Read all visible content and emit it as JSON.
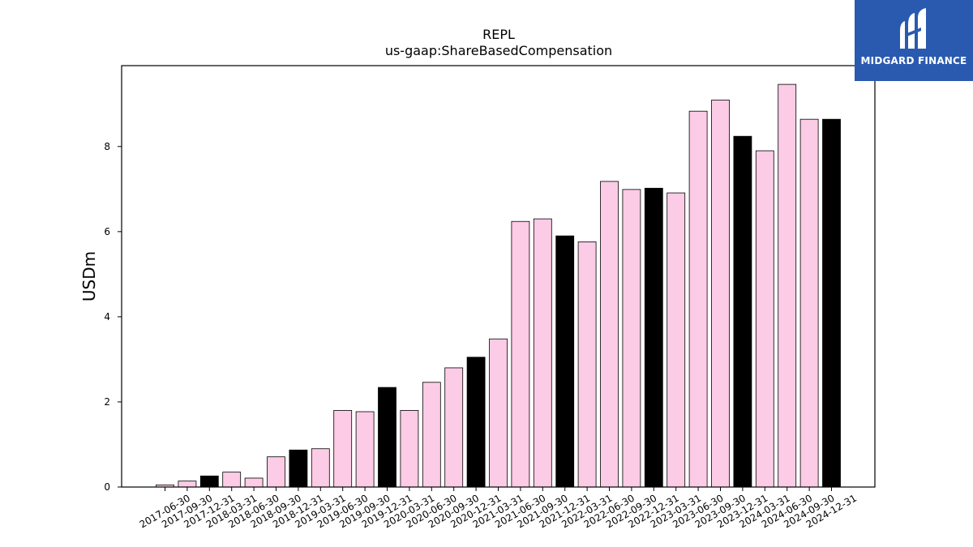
{
  "chart_data": {
    "type": "bar",
    "title": "REPL",
    "subtitle": "us-gaap:ShareBasedCompensation",
    "ylabel": "USDm",
    "xlabel": "",
    "ylim": [
      0,
      9.9
    ],
    "yticks": [
      0,
      2,
      4,
      6,
      8
    ],
    "grid": false,
    "colors": {
      "quarter": "#fccbe5",
      "year_end": "#000000",
      "edge": "#000000"
    },
    "categories": [
      "2017-06-30",
      "2017-09-30",
      "2017-12-31",
      "2018-03-31",
      "2018-06-30",
      "2018-09-30",
      "2018-12-31",
      "2019-03-31",
      "2019-06-30",
      "2019-09-30",
      "2019-12-31",
      "2020-03-31",
      "2020-06-30",
      "2020-09-30",
      "2020-12-31",
      "2021-03-31",
      "2021-06-30",
      "2021-09-30",
      "2021-12-31",
      "2022-03-31",
      "2022-06-30",
      "2022-09-30",
      "2022-12-31",
      "2023-03-31",
      "2023-06-30",
      "2023-09-30",
      "2023-12-31",
      "2024-03-31",
      "2024-06-30",
      "2024-09-30",
      "2024-12-31"
    ],
    "values": [
      0.05,
      0.14,
      0.26,
      0.35,
      0.21,
      0.71,
      0.87,
      0.9,
      1.8,
      1.77,
      2.34,
      1.8,
      2.46,
      2.8,
      3.05,
      3.48,
      6.24,
      6.3,
      5.9,
      5.76,
      7.18,
      6.99,
      7.02,
      6.91,
      8.83,
      9.09,
      8.24,
      7.9,
      9.46,
      8.64,
      8.64
    ]
  },
  "logo": {
    "text": "MIDGARD FINANCE",
    "icon": "midgard-logo-icon"
  }
}
